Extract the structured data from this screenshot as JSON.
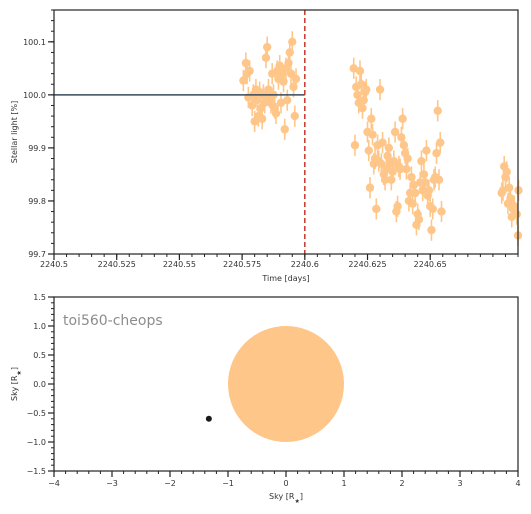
{
  "chart_data": [
    {
      "type": "scatter",
      "xlabel": "Time [days]",
      "ylabel": "Stellar light [%]",
      "xlim": [
        2240.5,
        2240.685
      ],
      "ylim": [
        99.7,
        100.16
      ],
      "xticks": [
        2240.5,
        2240.525,
        2240.55,
        2240.575,
        2240.6,
        2240.625,
        2240.65
      ],
      "xtick_labels": [
        "2240.5",
        "2240.525",
        "2240.55",
        "2240.575",
        "2240.6",
        "2240.625",
        "2240.65"
      ],
      "yticks": [
        99.7,
        99.8,
        99.9,
        100.0,
        100.1
      ],
      "ytick_labels": [
        "99.7",
        "99.8",
        "99.9",
        "100.0",
        "100.1"
      ],
      "marker_color": "#ffc68a",
      "model_color": "#34495e",
      "marker_line_color": "#c0392b",
      "model_line": {
        "x": [
          2240.5,
          2240.6
        ],
        "y": [
          100.0,
          100.0
        ]
      },
      "vertical_marker_x": 2240.6,
      "error": 0.02,
      "points": [
        [
          2240.5755,
          100.027
        ],
        [
          2240.5765,
          100.06
        ],
        [
          2240.577,
          100.04
        ],
        [
          2240.5775,
          99.995
        ],
        [
          2240.578,
          100.045
        ],
        [
          2240.579,
          99.98
        ],
        [
          2240.5795,
          100.0
        ],
        [
          2240.58,
          99.95
        ],
        [
          2240.5805,
          100.01
        ],
        [
          2240.581,
          99.99
        ],
        [
          2240.5815,
          99.96
        ],
        [
          2240.582,
          100.005
        ],
        [
          2240.5825,
          99.975
        ],
        [
          2240.583,
          99.955
        ],
        [
          2240.5835,
          100.0
        ],
        [
          2240.584,
          99.985
        ],
        [
          2240.5845,
          100.07
        ],
        [
          2240.585,
          100.09
        ],
        [
          2240.5855,
          100.01
        ],
        [
          2240.586,
          99.995
        ],
        [
          2240.5865,
          99.985
        ],
        [
          2240.587,
          100.04
        ],
        [
          2240.5875,
          100.0
        ],
        [
          2240.588,
          99.975
        ],
        [
          2240.5885,
          99.965
        ],
        [
          2240.589,
          100.045
        ],
        [
          2240.5895,
          100.03
        ],
        [
          2240.59,
          100.055
        ],
        [
          2240.5905,
          99.985
        ],
        [
          2240.591,
          100.04
        ],
        [
          2240.5915,
          100.025
        ],
        [
          2240.592,
          99.935
        ],
        [
          2240.5925,
          100.05
        ],
        [
          2240.593,
          99.99
        ],
        [
          2240.5935,
          100.06
        ],
        [
          2240.594,
          100.08
        ],
        [
          2240.5945,
          100.04
        ],
        [
          2240.595,
          100.1
        ],
        [
          2240.5955,
          100.015
        ],
        [
          2240.596,
          99.96
        ],
        [
          2240.5965,
          100.03
        ],
        [
          2240.6195,
          100.05
        ],
        [
          2240.62,
          99.905
        ],
        [
          2240.6205,
          100.015
        ],
        [
          2240.621,
          100.0
        ],
        [
          2240.6215,
          99.985
        ],
        [
          2240.622,
          100.045
        ],
        [
          2240.6225,
          100.02
        ],
        [
          2240.623,
          99.975
        ],
        [
          2240.6235,
          99.99
        ],
        [
          2240.624,
          100.005
        ],
        [
          2240.6245,
          100.01
        ],
        [
          2240.625,
          99.93
        ],
        [
          2240.6255,
          99.895
        ],
        [
          2240.626,
          99.825
        ],
        [
          2240.6265,
          99.955
        ],
        [
          2240.627,
          99.925
        ],
        [
          2240.6275,
          99.87
        ],
        [
          2240.628,
          99.88
        ],
        [
          2240.6285,
          99.785
        ],
        [
          2240.629,
          99.905
        ],
        [
          2240.6295,
          99.875
        ],
        [
          2240.63,
          100.01
        ],
        [
          2240.6305,
          99.87
        ],
        [
          2240.631,
          99.91
        ],
        [
          2240.6315,
          99.85
        ],
        [
          2240.632,
          99.84
        ],
        [
          2240.6325,
          99.86
        ],
        [
          2240.633,
          99.885
        ],
        [
          2240.6335,
          99.9
        ],
        [
          2240.634,
          99.87
        ],
        [
          2240.6345,
          99.84
        ],
        [
          2240.635,
          99.855
        ],
        [
          2240.6355,
          99.875
        ],
        [
          2240.636,
          99.93
        ],
        [
          2240.6365,
          99.78
        ],
        [
          2240.637,
          99.79
        ],
        [
          2240.6375,
          99.865
        ],
        [
          2240.638,
          99.86
        ],
        [
          2240.6385,
          99.92
        ],
        [
          2240.639,
          99.955
        ],
        [
          2240.6395,
          99.905
        ],
        [
          2240.64,
          99.89
        ],
        [
          2240.6405,
          99.86
        ],
        [
          2240.641,
          99.88
        ],
        [
          2240.6415,
          99.8
        ],
        [
          2240.642,
          99.815
        ],
        [
          2240.6425,
          99.845
        ],
        [
          2240.643,
          99.795
        ],
        [
          2240.6435,
          99.83
        ],
        [
          2240.644,
          99.815
        ],
        [
          2240.6445,
          99.755
        ],
        [
          2240.645,
          99.775
        ],
        [
          2240.6455,
          99.765
        ],
        [
          2240.646,
          99.835
        ],
        [
          2240.6465,
          99.875
        ],
        [
          2240.647,
          99.82
        ],
        [
          2240.6475,
          99.85
        ],
        [
          2240.648,
          99.835
        ],
        [
          2240.6485,
          99.895
        ],
        [
          2240.649,
          99.81
        ],
        [
          2240.6495,
          99.82
        ],
        [
          2240.65,
          99.79
        ],
        [
          2240.6505,
          99.745
        ],
        [
          2240.651,
          99.785
        ],
        [
          2240.6515,
          99.84
        ],
        [
          2240.652,
          99.845
        ],
        [
          2240.6525,
          99.89
        ],
        [
          2240.653,
          99.97
        ],
        [
          2240.6535,
          99.84
        ],
        [
          2240.654,
          99.91
        ],
        [
          2240.6545,
          99.78
        ],
        [
          2240.6785,
          99.815
        ],
        [
          2240.679,
          99.82
        ],
        [
          2240.6795,
          99.865
        ],
        [
          2240.68,
          99.845
        ],
        [
          2240.6805,
          99.855
        ],
        [
          2240.681,
          99.795
        ],
        [
          2240.6815,
          99.825
        ],
        [
          2240.682,
          99.805
        ],
        [
          2240.6825,
          99.77
        ],
        [
          2240.683,
          99.785
        ],
        [
          2240.6835,
          99.79
        ],
        [
          2240.6845,
          99.775
        ],
        [
          2240.685,
          99.735
        ],
        [
          2240.6852,
          99.82
        ]
      ]
    },
    {
      "type": "scatter",
      "title": "toi560-cheops",
      "xlabel": "Sky [R$_\\star$]",
      "ylabel": "Sky [R$_\\star$]",
      "xlim": [
        -4,
        4
      ],
      "ylim": [
        -1.5,
        1.5
      ],
      "xticks": [
        -4,
        -3,
        -2,
        -1,
        0,
        1,
        2,
        3,
        4
      ],
      "xtick_labels": [
        "−4",
        "−3",
        "−2",
        "−1",
        "0",
        "1",
        "2",
        "3",
        "4"
      ],
      "yticks": [
        -1.5,
        -1.0,
        -0.5,
        0.0,
        0.5,
        1.0,
        1.5
      ],
      "ytick_labels": [
        "−1.5",
        "−1.0",
        "−0.5",
        "0.0",
        "0.5",
        "1.0",
        "1.5"
      ],
      "star": {
        "x": 0,
        "y": 0,
        "radius": 1.0,
        "color": "#ffc68a"
      },
      "planet": {
        "x": -1.33,
        "y": -0.6,
        "color": "#1a1a1a"
      }
    }
  ]
}
